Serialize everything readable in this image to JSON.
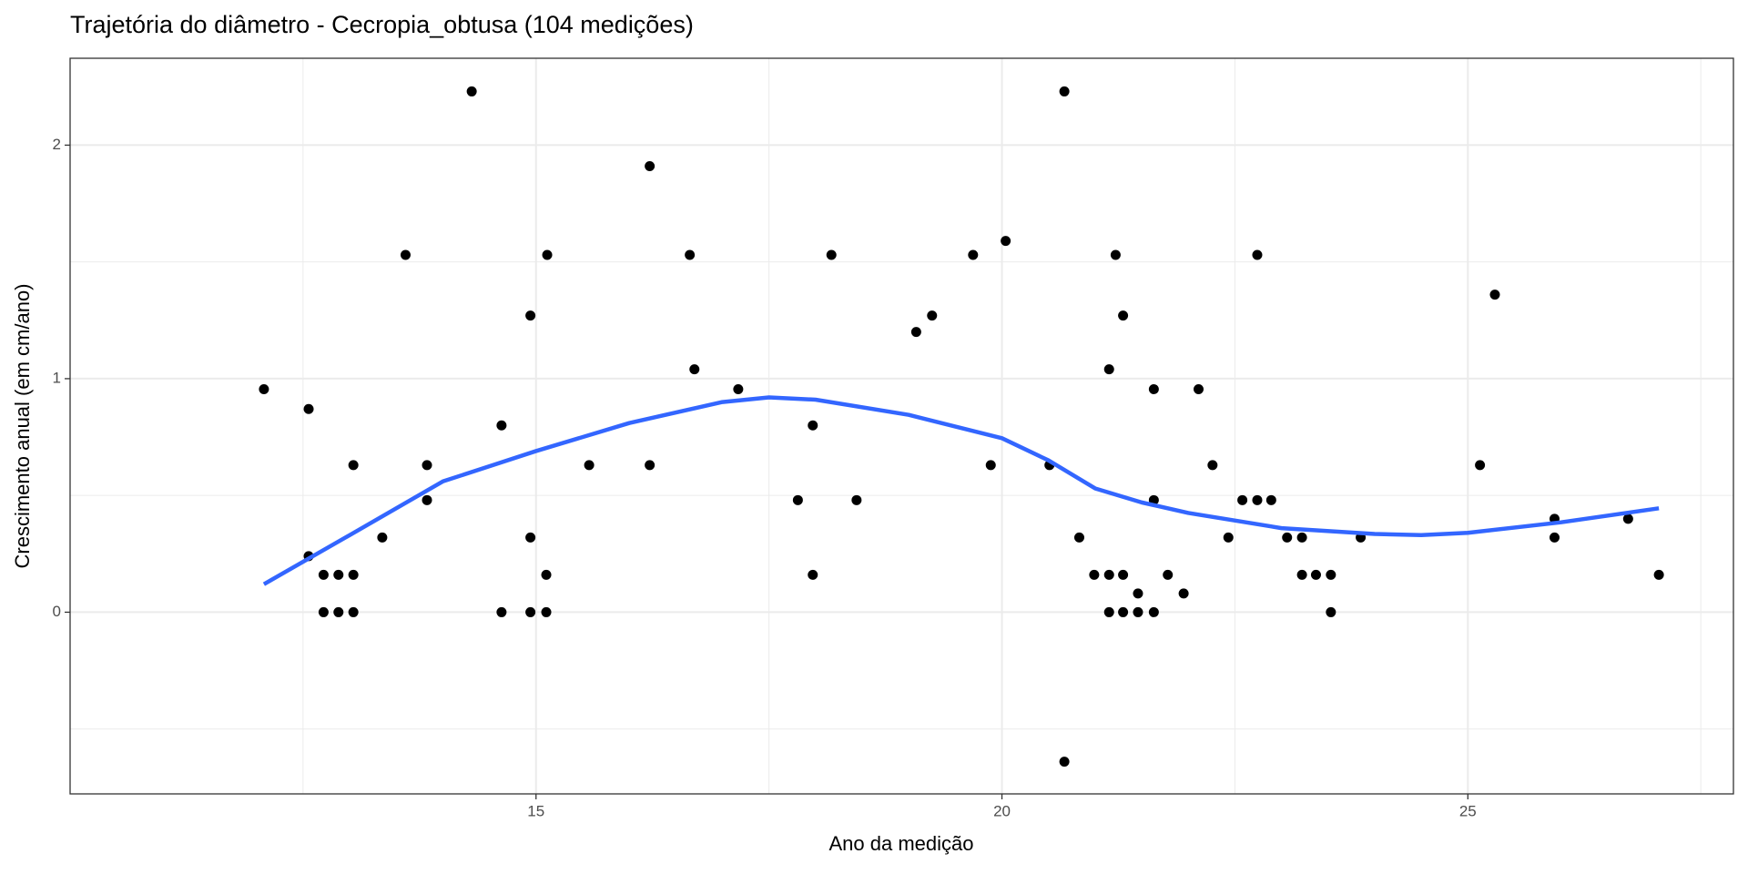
{
  "chart_data": {
    "type": "scatter",
    "title": "Trajetória do diâmetro - Cecropia_obtusa (104 medições)",
    "x_label": "Ano da medição",
    "y_label": "Crescimento anual (em cm/ano)",
    "xlim": [
      10.0,
      27.85
    ],
    "ylim": [
      -0.778,
      2.372
    ],
    "xticks": [
      15,
      20,
      25
    ],
    "yticks": [
      0,
      1,
      2
    ],
    "x_minor_grid": [
      12.5,
      17.5,
      22.5,
      27.5
    ],
    "y_minor_grid": [
      -0.5,
      0.5,
      1.5
    ],
    "grid": true,
    "points": {
      "color": "#000000",
      "x": [
        12.08,
        12.56,
        12.56,
        12.72,
        12.72,
        12.88,
        12.88,
        13.04,
        13.04,
        13.04,
        13.35,
        13.6,
        13.83,
        13.83,
        14.31,
        14.63,
        14.63,
        14.94,
        14.94,
        14.94,
        15.11,
        15.11,
        15.12,
        15.57,
        16.22,
        16.22,
        16.65,
        16.7,
        17.17,
        17.81,
        17.97,
        17.97,
        18.17,
        18.44,
        19.08,
        19.25,
        19.69,
        19.88,
        20.04,
        20.51,
        20.67,
        20.67,
        20.83,
        20.99,
        21.15,
        21.15,
        21.15,
        21.22,
        21.3,
        21.3,
        21.3,
        21.46,
        21.46,
        21.63,
        21.63,
        21.63,
        21.78,
        21.95,
        22.11,
        22.26,
        22.43,
        22.58,
        22.74,
        22.74,
        22.89,
        23.06,
        23.22,
        23.22,
        23.37,
        23.53,
        23.53,
        23.85,
        25.13,
        25.29,
        25.93,
        25.93,
        26.72,
        27.05
      ],
      "values": [
        0.955,
        0.87,
        0.24,
        0.16,
        0,
        0.16,
        0,
        0.63,
        0.16,
        0,
        0.32,
        1.53,
        0.63,
        0.48,
        2.23,
        0.8,
        0,
        1.27,
        0.32,
        0,
        0.16,
        0,
        1.53,
        0.63,
        1.91,
        0.63,
        1.53,
        1.04,
        0.955,
        0.48,
        0.8,
        0.16,
        1.53,
        0.48,
        1.2,
        1.27,
        1.53,
        0.63,
        1.59,
        0.63,
        2.23,
        -0.64,
        0.32,
        0.16,
        1.04,
        0.16,
        0,
        1.53,
        1.27,
        0.16,
        0,
        0.08,
        0,
        0.955,
        0.48,
        0,
        0.16,
        0.08,
        0.955,
        0.63,
        0.32,
        0.48,
        1.53,
        0.48,
        0.48,
        0.32,
        0.32,
        0.16,
        0.16,
        0.16,
        0,
        0.32,
        0.63,
        1.36,
        0.4,
        0.32,
        0.4,
        0.16
      ]
    },
    "smooth": {
      "color": "#3366FF",
      "x": [
        12.08,
        13,
        14,
        15,
        16,
        17,
        17.5,
        18,
        19,
        20,
        20.5,
        21,
        21.5,
        22,
        23,
        24,
        24.5,
        25,
        26,
        27.05
      ],
      "values": [
        0.12,
        0.33,
        0.56,
        0.69,
        0.81,
        0.9,
        0.92,
        0.91,
        0.845,
        0.745,
        0.65,
        0.53,
        0.47,
        0.425,
        0.36,
        0.335,
        0.33,
        0.34,
        0.385,
        0.445
      ]
    }
  }
}
